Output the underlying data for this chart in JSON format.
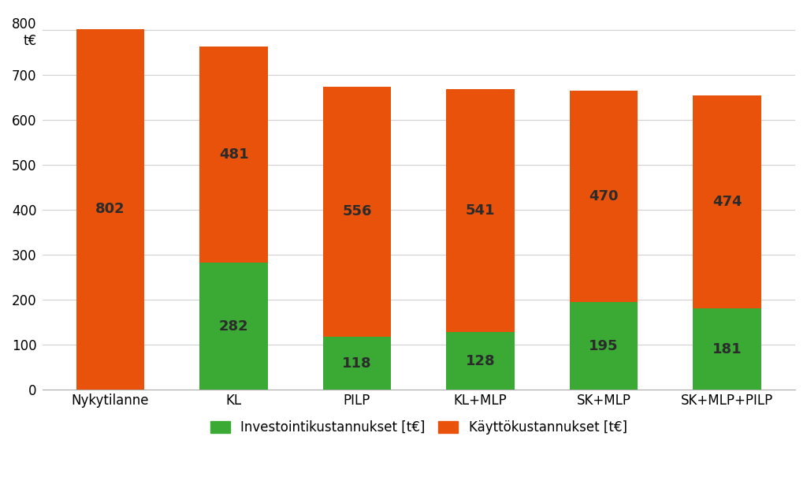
{
  "categories": [
    "Nykytilanne",
    "KL",
    "PILP",
    "KL+MLP",
    "SK+MLP",
    "SK+MLP+PILP"
  ],
  "invest_values": [
    0,
    282,
    118,
    128,
    195,
    181
  ],
  "kaytto_values": [
    802,
    481,
    556,
    541,
    470,
    474
  ],
  "invest_color": "#3aaa35",
  "kaytto_color": "#e8520a",
  "invest_label": "Investointikustannukset [t€]",
  "kaytto_label": "Käyttökustannukset [t€]",
  "ylim": [
    0,
    840
  ],
  "yticks": [
    0,
    100,
    200,
    300,
    400,
    500,
    600,
    700,
    800
  ],
  "ytick_labels": [
    "0",
    "100",
    "200",
    "300",
    "400",
    "500",
    "600",
    "700",
    "800\nt€"
  ],
  "bar_width": 0.55,
  "background_color": "#ffffff",
  "grid_color": "#d0d0d0",
  "tick_fontsize": 12,
  "legend_fontsize": 12,
  "value_fontsize": 13,
  "value_color": "#2b2b2b"
}
